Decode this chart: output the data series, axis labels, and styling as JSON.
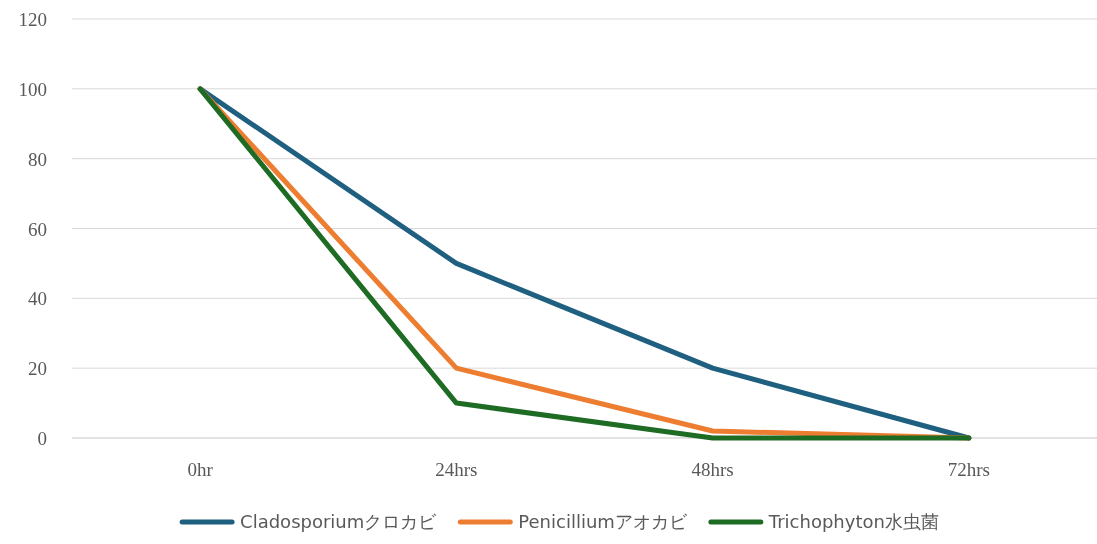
{
  "chart_data": {
    "type": "line",
    "categories": [
      "0hr",
      "24hrs",
      "48hrs",
      "72hrs"
    ],
    "series": [
      {
        "name": "Cladosporiumクロカビ",
        "color": "#1f5f80",
        "values": [
          100,
          50,
          20,
          0
        ]
      },
      {
        "name": "Penicilliumアオカビ",
        "color": "#ed7d31",
        "values": [
          100,
          20,
          2,
          0
        ]
      },
      {
        "name": "Trichophyton水虫菌",
        "color": "#1e6b24",
        "values": [
          100,
          10,
          0,
          0
        ]
      }
    ],
    "ylim": [
      0,
      120
    ],
    "yticks": [
      0,
      20,
      40,
      60,
      80,
      100,
      120
    ],
    "grid": "y",
    "legend": "bottom"
  }
}
